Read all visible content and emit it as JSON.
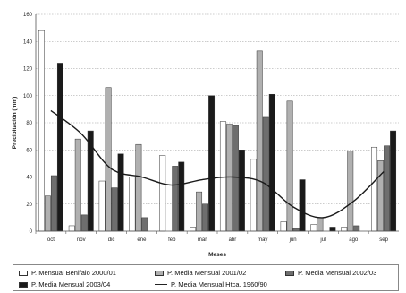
{
  "chart_data": {
    "type": "bar",
    "xlabel": "Meses",
    "ylabel": "Precipitación (mm)",
    "ylim": [
      0,
      160
    ],
    "yticks": [
      0,
      20,
      40,
      60,
      80,
      100,
      120,
      140,
      160
    ],
    "grid": true,
    "legend_position": "bottom",
    "categories": [
      "oct",
      "nov",
      "dic",
      "ene",
      "feb",
      "mar",
      "abr",
      "may",
      "jun",
      "jul",
      "ago",
      "sep"
    ],
    "series": [
      {
        "name": "P. Mensual Benifaio 2000/01",
        "type": "bar",
        "color": "#ffffff",
        "values": [
          148,
          4,
          37,
          40,
          56,
          3,
          81,
          53,
          7,
          5,
          3,
          62
        ]
      },
      {
        "name": "P. Media Mensual 2001/02",
        "type": "bar",
        "color": "#b0b0b0",
        "values": [
          26,
          68,
          106,
          64,
          0,
          29,
          79,
          133,
          96,
          10,
          59,
          52
        ]
      },
      {
        "name": "P. Media Mensual 2002/03",
        "type": "bar",
        "color": "#6e6e6e",
        "values": [
          41,
          12,
          32,
          10,
          48,
          20,
          78,
          84,
          2,
          0,
          4,
          63
        ]
      },
      {
        "name": "P. Media Mensual 2003/04",
        "type": "bar",
        "color": "#1a1a1a",
        "values": [
          124,
          74,
          57,
          0,
          51,
          100,
          60,
          101,
          38,
          3,
          0,
          74
        ]
      },
      {
        "name": "P. Media Mensual Htca. 1960/90",
        "type": "line",
        "color": "#1a1a1a",
        "values": [
          89,
          72,
          46,
          40,
          34,
          38,
          40,
          36,
          18,
          10,
          22,
          44
        ]
      }
    ]
  }
}
